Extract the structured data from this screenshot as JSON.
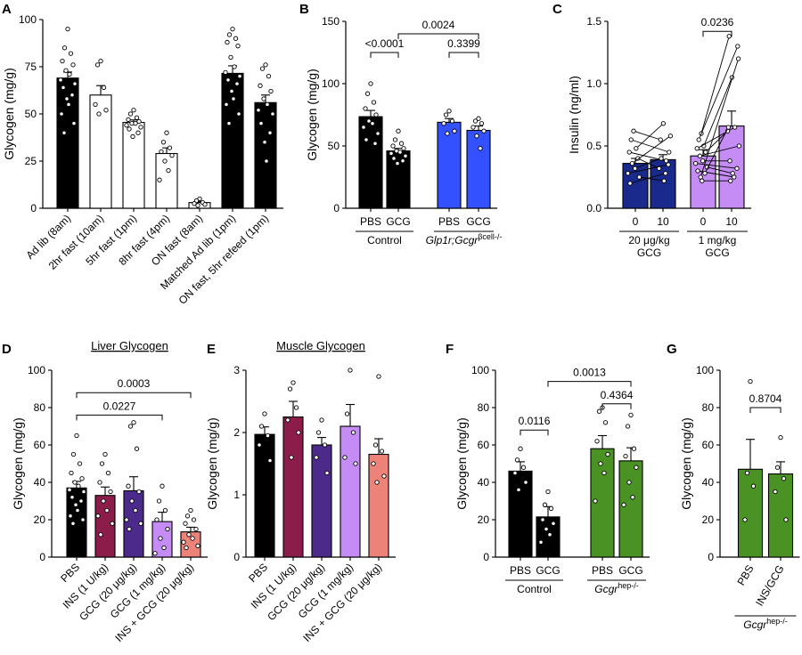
{
  "figure": {
    "panel_letters": [
      "A",
      "B",
      "C",
      "D",
      "E",
      "F",
      "G"
    ]
  },
  "chart_data": [
    {
      "panel": "A",
      "type": "bar",
      "title": "",
      "xlabel": "",
      "ylabel": "Glycogen (mg/g)",
      "ylim": [
        0,
        100
      ],
      "yticks": [
        0,
        25,
        50,
        75,
        100
      ],
      "categories": [
        "Ad lib (8am)",
        "2hr fast (10am)",
        "5hr fast (1pm)",
        "8hr fast (4pm)",
        "ON fast (8am)",
        "Matched Ad lib (1pm)",
        "ON fast, 5hr refeed (1pm)"
      ],
      "values": [
        69,
        60,
        45.5,
        29,
        3,
        71.5,
        56
      ],
      "sem": [
        3.2,
        5,
        1.3,
        3,
        0.6,
        4,
        4
      ],
      "colors": [
        "#000000",
        "#ffffff",
        "#ffffff",
        "#ffffff",
        "#ffffff",
        "#000000",
        "#000000"
      ],
      "points": [
        [
          95,
          85,
          82,
          78,
          76,
          73,
          71,
          68,
          66,
          64,
          60,
          58,
          55,
          50,
          45,
          40
        ],
        [
          78,
          76,
          64,
          55,
          52,
          50
        ],
        [
          52,
          50,
          48,
          47,
          46,
          45,
          45,
          44,
          43,
          42,
          40,
          38
        ],
        [
          40,
          35,
          32,
          30,
          28,
          25,
          20,
          15
        ],
        [
          5,
          4,
          3,
          2.5,
          2,
          1.5
        ],
        [
          95,
          92,
          90,
          88,
          86,
          80,
          75,
          72,
          70,
          68,
          66,
          62,
          58,
          55,
          50,
          45
        ],
        [
          76,
          74,
          70,
          65,
          62,
          58,
          55,
          52,
          50,
          45,
          40,
          35,
          25
        ]
      ],
      "legend": "none",
      "grid": false
    },
    {
      "panel": "B",
      "type": "bar",
      "title": "",
      "xlabel": "",
      "ylabel": "Glycogen (mg/g)",
      "ylim": [
        0,
        150
      ],
      "yticks": [
        0,
        50,
        100,
        150
      ],
      "categories": [
        "PBS",
        "GCG",
        "PBS",
        "GCG"
      ],
      "groups": [
        {
          "label": "Control",
          "italic_label": "",
          "superscript": "",
          "members": [
            0,
            1
          ]
        },
        {
          "label": "",
          "italic_label": "Glp1r;Gcgr",
          "superscript": "βcell-/-",
          "members": [
            2,
            3
          ]
        }
      ],
      "values": [
        73.5,
        46,
        69,
        62.5
      ],
      "sem": [
        5,
        2,
        3,
        3.5
      ],
      "colors": [
        "#000000",
        "#000000",
        "#3451ff",
        "#3451ff"
      ],
      "points": [
        [
          100,
          92,
          85,
          80,
          75,
          70,
          68,
          65,
          60,
          55,
          52
        ],
        [
          62,
          55,
          52,
          50,
          48,
          46,
          45,
          44,
          42,
          40,
          38,
          36
        ],
        [
          78,
          75,
          70,
          68,
          62,
          60
        ],
        [
          72,
          70,
          68,
          65,
          62,
          58,
          48
        ]
      ],
      "comparisons": [
        {
          "from": 0,
          "to": 1,
          "label": "<0.0001",
          "y": 125
        },
        {
          "from": 2,
          "to": 3,
          "label": "0.3399",
          "y": 125
        },
        {
          "from": 1,
          "to": 3,
          "label": "0.0024",
          "y": 140
        }
      ],
      "legend": "none",
      "grid": false
    },
    {
      "panel": "C",
      "type": "bar",
      "title": "",
      "xlabel": "",
      "ylabel": "Insulin (ng/ml)",
      "ylim": [
        0,
        1.5
      ],
      "yticks": [
        0,
        0.5,
        1.0,
        1.5
      ],
      "ytick_labels": [
        "0.0",
        "0.5",
        "1.0",
        "1.5"
      ],
      "categories": [
        "0",
        "10",
        "0",
        "10"
      ],
      "groups": [
        {
          "label": "20 μg/kg",
          "label2": "GCG",
          "members": [
            0,
            1
          ]
        },
        {
          "label": "1 mg/kg",
          "label2": "GCG",
          "members": [
            2,
            3
          ]
        }
      ],
      "values": [
        0.36,
        0.39,
        0.42,
        0.66
      ],
      "sem": [
        0.04,
        0.04,
        0.05,
        0.12
      ],
      "colors": [
        "#1a2a8c",
        "#1a2a8c",
        "#c58cf5",
        "#c58cf5"
      ],
      "paired": [
        [
          [
            0.62,
            0.55
          ],
          [
            0.55,
            0.45
          ],
          [
            0.48,
            0.68
          ],
          [
            0.45,
            0.38
          ],
          [
            0.4,
            0.32
          ],
          [
            0.36,
            0.58
          ],
          [
            0.32,
            0.4
          ],
          [
            0.28,
            0.35
          ],
          [
            0.25,
            0.22
          ],
          [
            0.2,
            0.28
          ]
        ],
        [
          [
            0.6,
            1.38
          ],
          [
            0.55,
            1.3
          ],
          [
            0.5,
            1.05
          ],
          [
            0.48,
            0.65
          ],
          [
            0.45,
            0.62
          ],
          [
            0.42,
            0.5
          ],
          [
            0.38,
            0.38
          ],
          [
            0.36,
            0.32
          ],
          [
            0.33,
            0.28
          ],
          [
            0.3,
            0.25
          ],
          [
            0.28,
            0.65
          ],
          [
            0.25,
            1.2
          ],
          [
            0.22,
            0.22
          ]
        ]
      ],
      "comparisons": [
        {
          "from": 2,
          "to": 3,
          "label": "0.0236",
          "y": 1.42
        }
      ],
      "legend": "none",
      "grid": false
    },
    {
      "panel": "D",
      "type": "bar",
      "title": "Liver Glycogen",
      "xlabel": "",
      "ylabel": "Glycogen (mg/g)",
      "ylim": [
        0,
        100
      ],
      "yticks": [
        0,
        20,
        40,
        60,
        80,
        100
      ],
      "categories": [
        "PBS",
        "INS (1 U/kg)",
        "GCG (20 μg/kg)",
        "GCG (1 mg/kg)",
        "INS + GCG (20 μg/kg)"
      ],
      "values": [
        37,
        33,
        35.5,
        19,
        13.5
      ],
      "sem": [
        3.5,
        4.5,
        7.5,
        5,
        2.5
      ],
      "colors": [
        "#000000",
        "#8c1d4b",
        "#4b2a8c",
        "#c58cf5",
        "#ec8278"
      ],
      "points": [
        [
          65,
          55,
          50,
          45,
          42,
          40,
          38,
          36,
          35,
          32,
          30,
          28,
          25,
          22,
          20,
          18
        ],
        [
          55,
          50,
          45,
          40,
          35,
          30,
          25,
          22,
          18,
          12
        ],
        [
          72,
          70,
          58,
          38,
          35,
          30,
          25,
          20,
          18,
          15
        ],
        [
          38,
          30,
          25,
          20,
          15,
          10,
          5,
          2
        ],
        [
          25,
          22,
          20,
          18,
          15,
          12,
          10,
          8,
          6,
          5
        ]
      ],
      "comparisons": [
        {
          "from": 0,
          "to": 3,
          "label": "0.0227",
          "y": 76
        },
        {
          "from": 0,
          "to": 4,
          "label": "0.0003",
          "y": 88
        }
      ],
      "legend": "none",
      "grid": false
    },
    {
      "panel": "E",
      "type": "bar",
      "title": "Muscle Glycogen",
      "xlabel": "",
      "ylabel": "Glycogen (mg/g)",
      "ylim": [
        0,
        3
      ],
      "yticks": [
        0,
        1,
        2,
        3
      ],
      "categories": [
        "PBS",
        "INS (1 U/kg)",
        "GCG (20 μg/kg)",
        "GCG (1 mg/kg)",
        "INS + GCG (20 μg/kg)"
      ],
      "values": [
        1.97,
        2.25,
        1.8,
        2.1,
        1.65
      ],
      "sem": [
        0.12,
        0.25,
        0.12,
        0.35,
        0.25
      ],
      "colors": [
        "#000000",
        "#8c1d4b",
        "#4b2a8c",
        "#c58cf5",
        "#ec8278"
      ],
      "points": [
        [
          2.3,
          2.1,
          1.95,
          1.8,
          1.55
        ],
        [
          2.8,
          2.7,
          2.4,
          2.2,
          2.0,
          1.6
        ],
        [
          2.2,
          2.0,
          1.8,
          1.6,
          1.35
        ],
        [
          3.0,
          2.3,
          2.0,
          1.6,
          1.5
        ],
        [
          2.9,
          1.8,
          1.7,
          1.5,
          1.3,
          1.2
        ]
      ],
      "legend": "none",
      "grid": false
    },
    {
      "panel": "F",
      "type": "bar",
      "title": "",
      "xlabel": "",
      "ylabel": "Glycogen (mg/g)",
      "ylim": [
        0,
        100
      ],
      "yticks": [
        0,
        20,
        40,
        60,
        80,
        100
      ],
      "categories": [
        "PBS",
        "GCG",
        "PBS",
        "GCG"
      ],
      "groups": [
        {
          "label": "Control",
          "italic_label": "",
          "superscript": "",
          "members": [
            0,
            1
          ]
        },
        {
          "label": "",
          "italic_label": "Gcgr",
          "superscript": "hep-/-",
          "members": [
            2,
            3
          ]
        }
      ],
      "values": [
        46,
        21.5,
        58,
        51.5
      ],
      "sem": [
        5,
        5.5,
        7,
        7
      ],
      "colors": [
        "#000000",
        "#000000",
        "#4a9224",
        "#4a9224"
      ],
      "points": [
        [
          58,
          52,
          48,
          45,
          40,
          36
        ],
        [
          35,
          28,
          26,
          20,
          18,
          15,
          12,
          8
        ],
        [
          80,
          78,
          72,
          62,
          55,
          50,
          45,
          30
        ],
        [
          76,
          70,
          58,
          54,
          48,
          40,
          32,
          28
        ]
      ],
      "comparisons": [
        {
          "from": 0,
          "to": 1,
          "label": "0.0116",
          "y": 68
        },
        {
          "from": 2,
          "to": 3,
          "label": "0.4364",
          "y": 82
        },
        {
          "from": 1,
          "to": 3,
          "label": "0.0013",
          "y": 94
        }
      ],
      "legend": "none",
      "grid": false
    },
    {
      "panel": "G",
      "type": "bar",
      "title": "",
      "xlabel": "",
      "ylabel": "Glycogen (mg/g)",
      "ylim": [
        0,
        100
      ],
      "yticks": [
        0,
        20,
        40,
        60,
        80,
        100
      ],
      "categories": [
        "PBS",
        "INS/GCG"
      ],
      "groups": [
        {
          "label": "",
          "italic_label": "Gcgr",
          "superscript": "hep-/-",
          "members": [
            0,
            1
          ]
        }
      ],
      "values": [
        47,
        44.5
      ],
      "sem": [
        16,
        6.5
      ],
      "colors": [
        "#4a9224",
        "#4a9224"
      ],
      "points": [
        [
          94,
          45,
          38,
          20
        ],
        [
          64,
          48,
          42,
          35,
          20
        ]
      ],
      "comparisons": [
        {
          "from": 0,
          "to": 1,
          "label": "0.8704",
          "y": 80
        }
      ],
      "legend": "none",
      "grid": false
    }
  ]
}
